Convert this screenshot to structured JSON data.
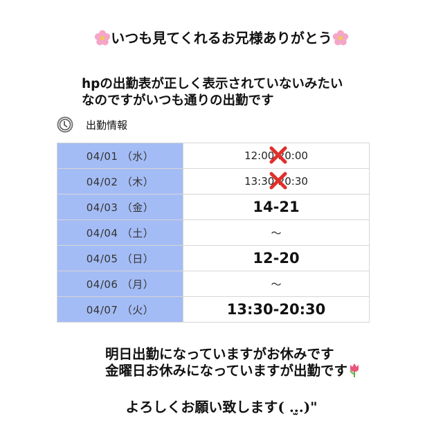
{
  "title": {
    "text": "いつも見てくれるお兄様ありがとう",
    "decoration_icon": "cherry-blossom-icon"
  },
  "intro": {
    "line1_prefix": "hp",
    "line1_rest": "の出勤表が正しく表示されていないみたい",
    "line2": "なのですがいつも通りの出勤です"
  },
  "schedule": {
    "header": "出勤情報",
    "header_icon": "clock-icon",
    "date_column_color": "#a4bcf5",
    "rows": [
      {
        "date": "04/01 （水）",
        "time": "12:00-20:00",
        "crossed_out": true
      },
      {
        "date": "04/02 （木）",
        "time": "13:30-20:30",
        "crossed_out": true
      },
      {
        "date": "04/03 （金）",
        "time": "14-21",
        "handwritten": true
      },
      {
        "date": "04/04 （土）",
        "time": "～"
      },
      {
        "date": "04/05 （日）",
        "time": "12-20",
        "handwritten": true
      },
      {
        "date": "04/06 （月）",
        "time": "～"
      },
      {
        "date": "04/07 （火）",
        "time": "13:30-20:30",
        "handwritten": true
      }
    ]
  },
  "notes": {
    "line1": "明日出勤になっていますがお休みです",
    "line2": "金曜日お休みになっていますが出勤です",
    "decoration_icon": "tulip-icon"
  },
  "closing": "よろしくお願い致します( ..̫.)\""
}
